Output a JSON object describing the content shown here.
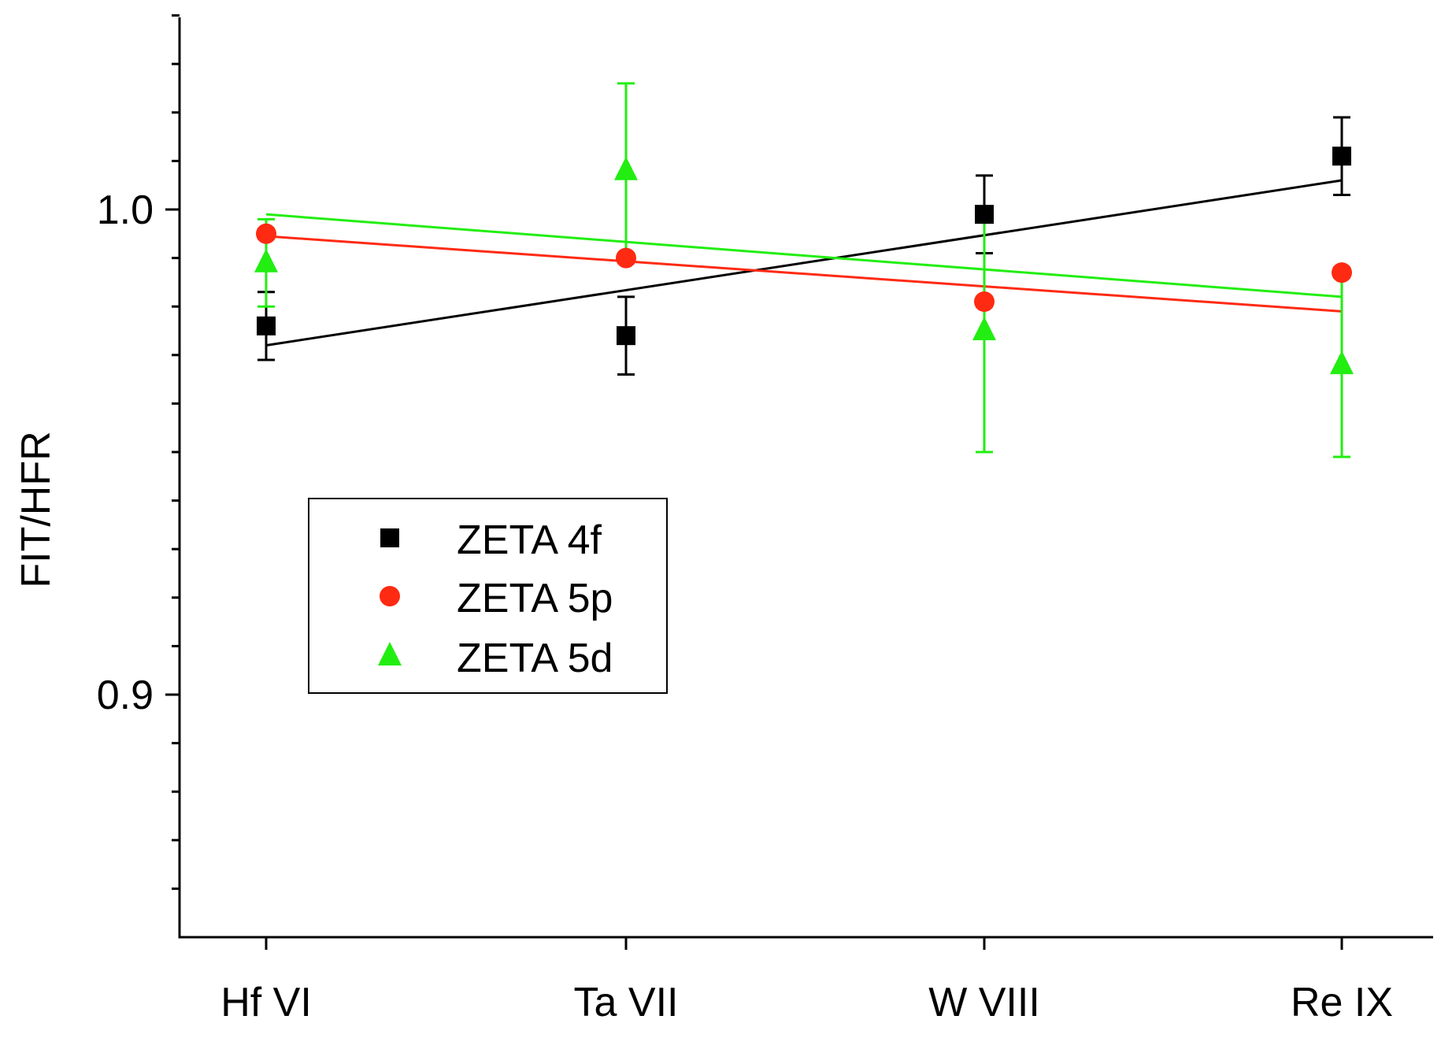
{
  "chart_data": {
    "type": "scatter",
    "title": "",
    "xlabel": "",
    "ylabel": "FIT/HFR",
    "categories": [
      "Hf VI",
      "Ta VII",
      "W VIII",
      "Re IX"
    ],
    "ylim": [
      0.85,
      1.04
    ],
    "yticks": [
      0.9,
      1.0
    ],
    "ytick_labels": [
      "0.9",
      "1.0"
    ],
    "y_minor_step": 0.01,
    "grid": false,
    "legend_position": "center-left",
    "series": [
      {
        "name": "ZETA 4f",
        "color": "#000000",
        "marker": "square",
        "values": [
          0.976,
          0.974,
          0.999,
          1.011
        ],
        "errors": [
          0.007,
          0.008,
          0.008,
          0.008
        ],
        "fit": [
          0.972,
          1.006
        ]
      },
      {
        "name": "ZETA 5p",
        "color": "#ff2a12",
        "marker": "circle",
        "values": [
          0.995,
          0.99,
          0.981,
          0.987
        ],
        "errors": [
          0.001,
          0.001,
          0.001,
          0.001
        ],
        "fit": [
          0.9945,
          0.979
        ]
      },
      {
        "name": "ZETA 5d",
        "color": "#22ee11",
        "marker": "triangle",
        "values": [
          0.989,
          1.008,
          0.975,
          0.968
        ],
        "errors": [
          0.009,
          0.018,
          0.025,
          0.019
        ],
        "fit": [
          0.999,
          0.982
        ]
      }
    ]
  }
}
